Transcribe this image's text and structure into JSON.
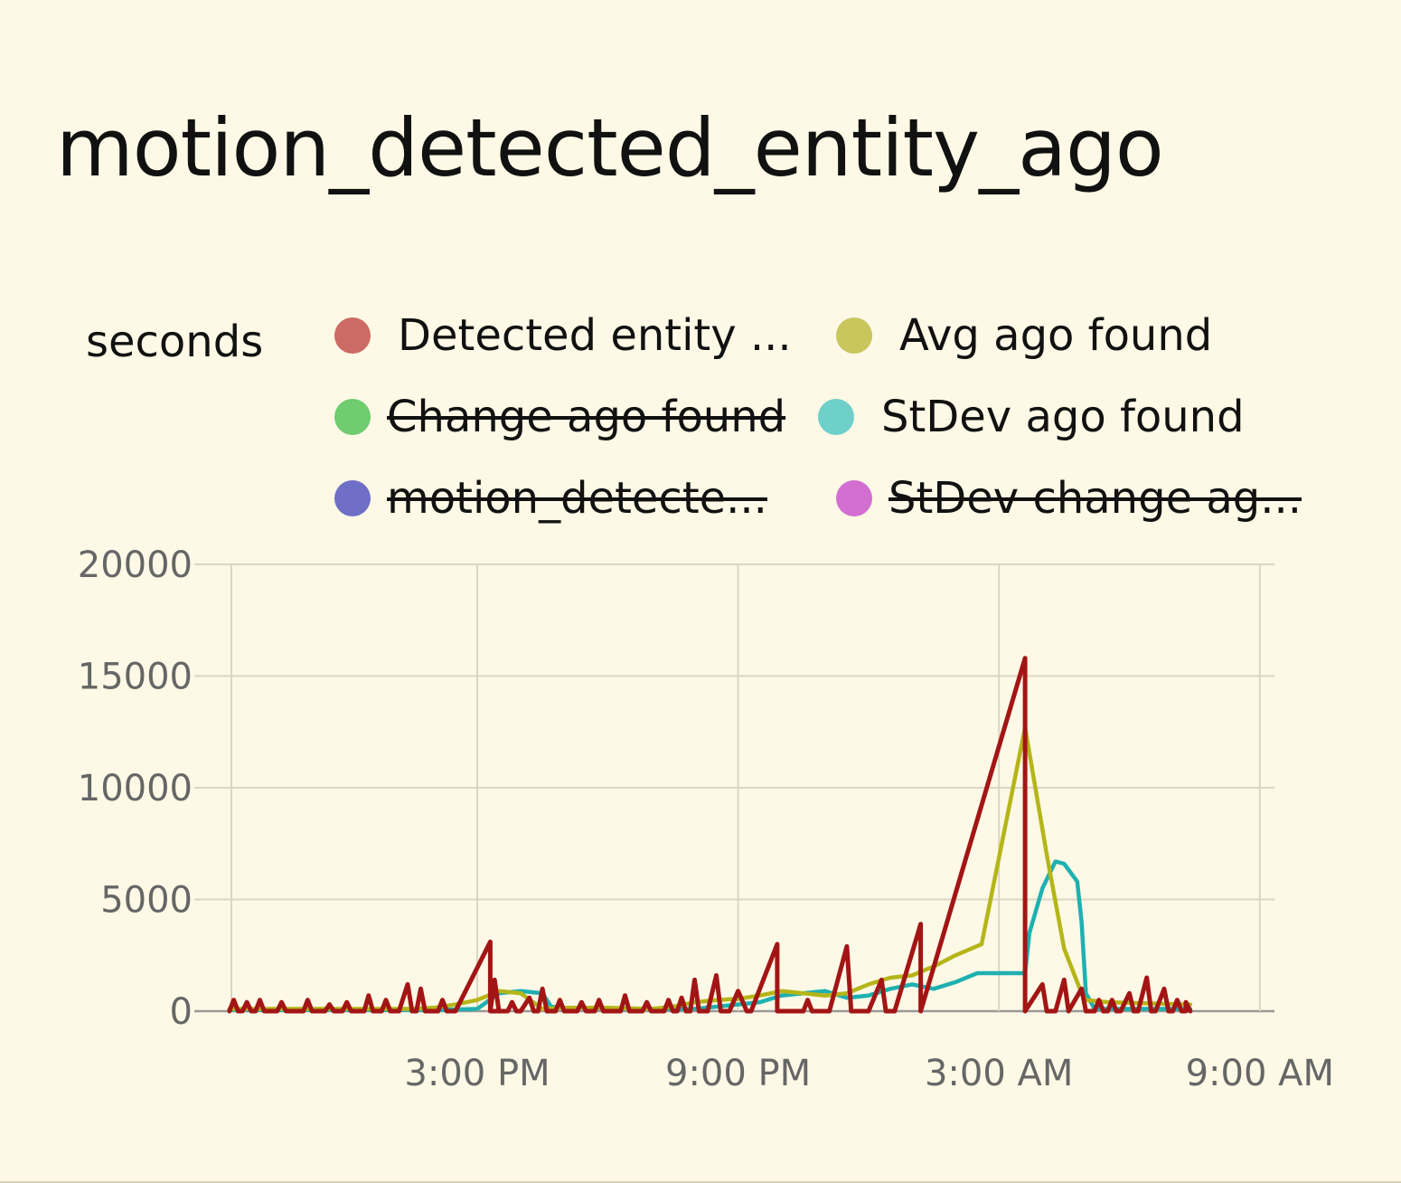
{
  "card": {
    "title": "motion_detected_entity_ago"
  },
  "chart_data": {
    "type": "line",
    "ylabel": "seconds",
    "ylim": [
      0,
      20000
    ],
    "yticks": [
      0,
      5000,
      10000,
      15000,
      20000
    ],
    "xticks": [
      "3:00 PM",
      "9:00 PM",
      "3:00 AM",
      "9:00 AM"
    ],
    "x_unit": "hours from 3:00 PM",
    "grid": true,
    "legend": "top",
    "series": [
      {
        "name": "Detected entity ...",
        "color": "#a31515",
        "legend_color": "#cc6b63",
        "hidden": false,
        "points": [
          [
            -5.7,
            0
          ],
          [
            -5.6,
            500
          ],
          [
            -5.5,
            0
          ],
          [
            -5.4,
            0
          ],
          [
            -5.3,
            400
          ],
          [
            -5.2,
            0
          ],
          [
            -5.1,
            0
          ],
          [
            -5.0,
            500
          ],
          [
            -4.9,
            0
          ],
          [
            -4.6,
            0
          ],
          [
            -4.5,
            400
          ],
          [
            -4.4,
            0
          ],
          [
            -4.0,
            0
          ],
          [
            -3.9,
            500
          ],
          [
            -3.8,
            0
          ],
          [
            -3.5,
            0
          ],
          [
            -3.4,
            300
          ],
          [
            -3.3,
            0
          ],
          [
            -3.1,
            0
          ],
          [
            -3.0,
            400
          ],
          [
            -2.9,
            0
          ],
          [
            -2.6,
            0
          ],
          [
            -2.5,
            700
          ],
          [
            -2.4,
            0
          ],
          [
            -2.2,
            0
          ],
          [
            -2.1,
            500
          ],
          [
            -2.0,
            0
          ],
          [
            -1.8,
            0
          ],
          [
            -1.6,
            1200
          ],
          [
            -1.5,
            0
          ],
          [
            -1.4,
            0
          ],
          [
            -1.3,
            1000
          ],
          [
            -1.2,
            0
          ],
          [
            -0.9,
            0
          ],
          [
            -0.8,
            500
          ],
          [
            -0.7,
            0
          ],
          [
            -0.5,
            0
          ],
          [
            0.3,
            3100
          ],
          [
            0.3,
            0
          ],
          [
            0.5,
            0
          ],
          [
            0.4,
            1400
          ],
          [
            0.3,
            0
          ],
          [
            0.6,
            0
          ],
          [
            0.7,
            0
          ],
          [
            0.8,
            400
          ],
          [
            0.9,
            0
          ],
          [
            1.0,
            0
          ],
          [
            1.2,
            600
          ],
          [
            1.3,
            0
          ],
          [
            1.4,
            0
          ],
          [
            1.5,
            1000
          ],
          [
            1.6,
            0
          ],
          [
            1.8,
            0
          ],
          [
            1.9,
            500
          ],
          [
            2.0,
            0
          ],
          [
            2.3,
            0
          ],
          [
            2.4,
            400
          ],
          [
            2.5,
            0
          ],
          [
            2.7,
            0
          ],
          [
            2.8,
            500
          ],
          [
            2.9,
            0
          ],
          [
            3.3,
            0
          ],
          [
            3.4,
            700
          ],
          [
            3.5,
            0
          ],
          [
            3.8,
            0
          ],
          [
            3.9,
            400
          ],
          [
            4.0,
            0
          ],
          [
            4.3,
            0
          ],
          [
            4.4,
            500
          ],
          [
            4.5,
            0
          ],
          [
            4.6,
            0
          ],
          [
            4.7,
            600
          ],
          [
            4.8,
            0
          ],
          [
            4.9,
            0
          ],
          [
            5.0,
            1400
          ],
          [
            5.1,
            0
          ],
          [
            5.3,
            0
          ],
          [
            5.5,
            1600
          ],
          [
            5.6,
            0
          ],
          [
            5.8,
            0
          ],
          [
            6.0,
            900
          ],
          [
            6.2,
            0
          ],
          [
            6.3,
            0
          ],
          [
            6.9,
            3000
          ],
          [
            6.9,
            0
          ],
          [
            7.5,
            0
          ],
          [
            7.6,
            500
          ],
          [
            7.7,
            0
          ],
          [
            8.1,
            0
          ],
          [
            8.5,
            2900
          ],
          [
            8.6,
            0
          ],
          [
            9.0,
            0
          ],
          [
            9.3,
            1400
          ],
          [
            9.4,
            0
          ],
          [
            9.6,
            0
          ],
          [
            10.2,
            3900
          ],
          [
            10.2,
            0
          ],
          [
            12.6,
            15800
          ],
          [
            12.6,
            0
          ],
          [
            13.0,
            1200
          ],
          [
            13.1,
            0
          ],
          [
            13.3,
            0
          ],
          [
            13.5,
            1400
          ],
          [
            13.6,
            0
          ],
          [
            13.9,
            1000
          ],
          [
            14.0,
            0
          ],
          [
            14.2,
            0
          ],
          [
            14.3,
            500
          ],
          [
            14.4,
            0
          ],
          [
            14.5,
            0
          ],
          [
            14.6,
            500
          ],
          [
            14.7,
            0
          ],
          [
            14.8,
            0
          ],
          [
            15.0,
            800
          ],
          [
            15.1,
            0
          ],
          [
            15.2,
            0
          ],
          [
            15.4,
            1500
          ],
          [
            15.5,
            0
          ],
          [
            15.6,
            0
          ],
          [
            15.8,
            1000
          ],
          [
            15.9,
            0
          ],
          [
            16.0,
            0
          ],
          [
            16.1,
            500
          ],
          [
            16.2,
            0
          ],
          [
            16.3,
            0
          ],
          [
            16.3,
            400
          ],
          [
            16.4,
            0
          ]
        ]
      },
      {
        "name": "Avg ago found",
        "color": "#b5b519",
        "legend_color": "#c9c65e",
        "hidden": false,
        "points": [
          [
            -5.7,
            100
          ],
          [
            -1.5,
            100
          ],
          [
            -1.0,
            150
          ],
          [
            -0.5,
            300
          ],
          [
            0,
            500
          ],
          [
            0.5,
            900
          ],
          [
            1.0,
            800
          ],
          [
            1.5,
            100
          ],
          [
            2.0,
            150
          ],
          [
            3.0,
            150
          ],
          [
            4.0,
            100
          ],
          [
            4.5,
            200
          ],
          [
            5.0,
            400
          ],
          [
            5.5,
            500
          ],
          [
            6.0,
            550
          ],
          [
            6.5,
            700
          ],
          [
            7.0,
            900
          ],
          [
            7.5,
            800
          ],
          [
            8.0,
            700
          ],
          [
            8.5,
            800
          ],
          [
            9.0,
            1200
          ],
          [
            9.5,
            1500
          ],
          [
            10.0,
            1600
          ],
          [
            10.5,
            2000
          ],
          [
            11.0,
            2500
          ],
          [
            11.6,
            3000
          ],
          [
            12.6,
            12700
          ],
          [
            13.1,
            7000
          ],
          [
            13.5,
            2800
          ],
          [
            13.9,
            800
          ],
          [
            14.0,
            500
          ],
          [
            14.5,
            400
          ],
          [
            16.4,
            300
          ]
        ]
      },
      {
        "name": "Change ago found",
        "color": "#66cc66",
        "legend_color": "#6fcc6f",
        "hidden": true,
        "points": []
      },
      {
        "name": "StDev ago found",
        "color": "#1fb0b0",
        "legend_color": "#6fcfc9",
        "hidden": false,
        "points": [
          [
            -5.7,
            50
          ],
          [
            -1.0,
            50
          ],
          [
            0,
            100
          ],
          [
            0.5,
            800
          ],
          [
            1.0,
            900
          ],
          [
            1.5,
            800
          ],
          [
            1.7,
            200
          ],
          [
            2.0,
            150
          ],
          [
            4.0,
            100
          ],
          [
            5.0,
            100
          ],
          [
            6.0,
            300
          ],
          [
            6.5,
            400
          ],
          [
            7.0,
            700
          ],
          [
            7.5,
            800
          ],
          [
            8.0,
            900
          ],
          [
            8.5,
            600
          ],
          [
            9.0,
            700
          ],
          [
            9.5,
            1000
          ],
          [
            10.0,
            1200
          ],
          [
            10.5,
            1000
          ],
          [
            11.0,
            1300
          ],
          [
            11.5,
            1700
          ],
          [
            12.6,
            1700
          ],
          [
            12.7,
            3500
          ],
          [
            13.0,
            5500
          ],
          [
            13.3,
            6700
          ],
          [
            13.5,
            6600
          ],
          [
            13.8,
            5800
          ],
          [
            13.9,
            4000
          ],
          [
            14.0,
            800
          ],
          [
            14.2,
            100
          ],
          [
            16.4,
            100
          ]
        ]
      },
      {
        "name": "motion_detecte...",
        "color": "#6f6fc7",
        "legend_color": "#6f6fc7",
        "hidden": true,
        "points": []
      },
      {
        "name": "StDev change ag...",
        "color": "#cc6fcc",
        "legend_color": "#d26fd0",
        "hidden": true,
        "points": []
      }
    ]
  }
}
